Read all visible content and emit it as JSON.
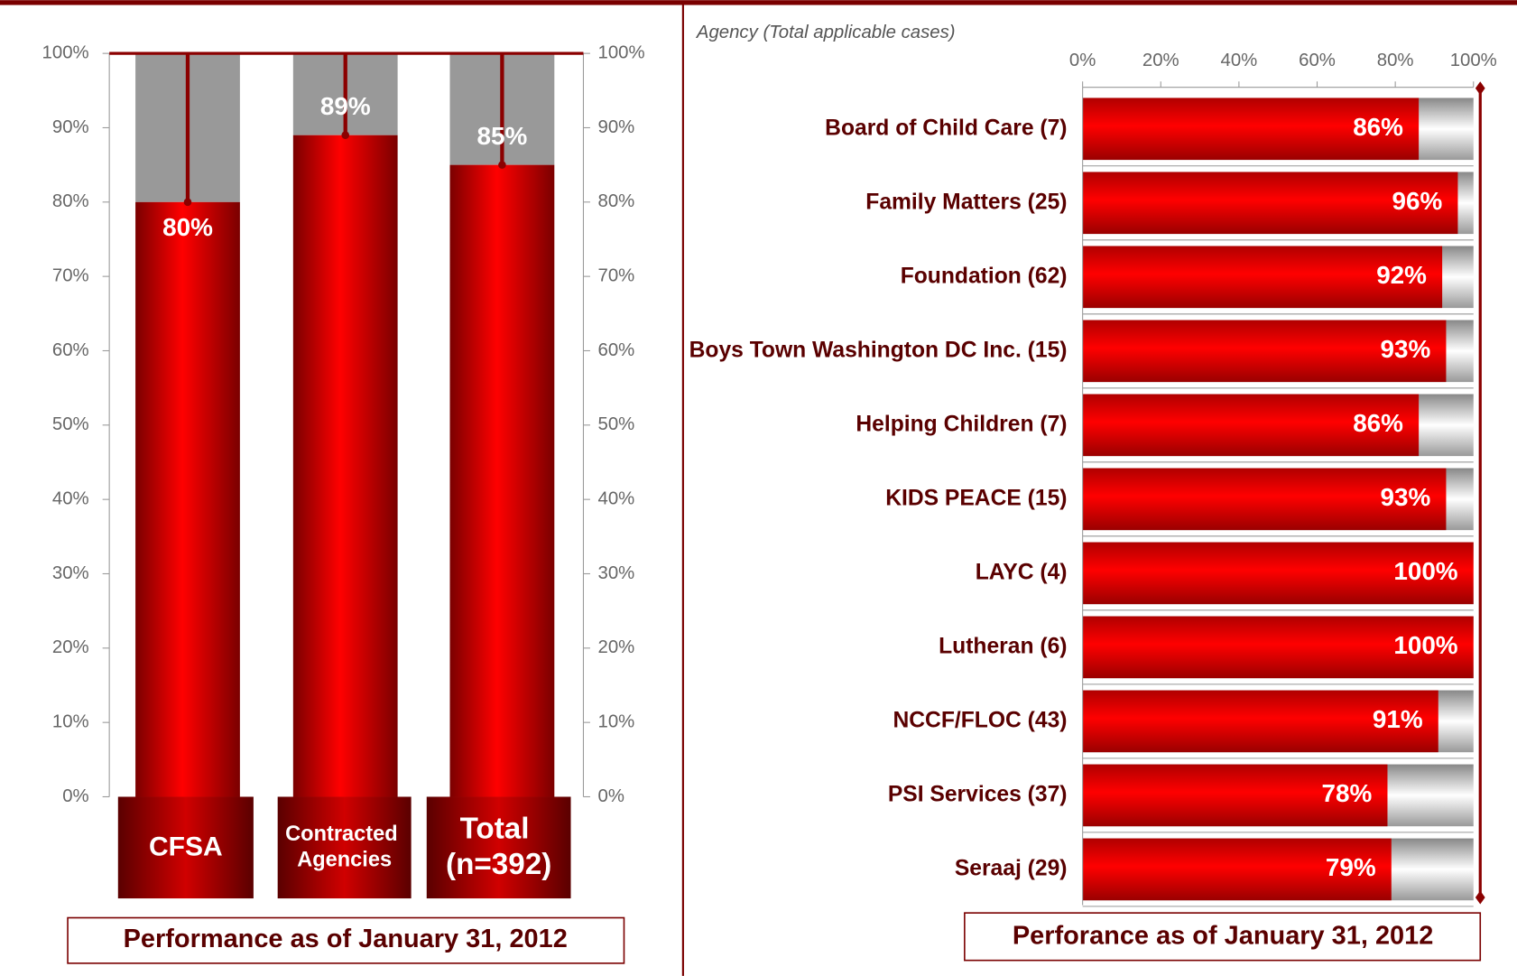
{
  "chart_data": [
    {
      "type": "bar",
      "categories": [
        "CFSA",
        "Contracted Agencies",
        "Total (n=392)"
      ],
      "values": [
        80,
        89,
        85
      ],
      "value_labels": [
        "80%",
        "89%",
        "85%"
      ],
      "color": "#e00000",
      "ylim": [
        0,
        100
      ],
      "yticks": [
        {
          "value": 0,
          "label": "0%"
        },
        {
          "value": 10,
          "label": "10%"
        },
        {
          "value": 20,
          "label": "20%"
        },
        {
          "value": 30,
          "label": "30%"
        },
        {
          "value": 40,
          "label": "40%"
        },
        {
          "value": 50,
          "label": "50%"
        },
        {
          "value": 60,
          "label": "60%"
        },
        {
          "value": 70,
          "label": "70%"
        },
        {
          "value": 80,
          "label": "80%"
        },
        {
          "value": 90,
          "label": "90%"
        },
        {
          "value": 100,
          "label": "100%"
        }
      ],
      "y2lim": [
        0,
        100
      ],
      "y2ticks": [
        {
          "value": 0,
          "label": "0%"
        },
        {
          "value": 10,
          "label": "10%"
        },
        {
          "value": 20,
          "label": "20%"
        },
        {
          "value": 30,
          "label": "30%"
        },
        {
          "value": 40,
          "label": "40%"
        },
        {
          "value": 50,
          "label": "50%"
        },
        {
          "value": 60,
          "label": "60%"
        },
        {
          "value": 70,
          "label": "70%"
        },
        {
          "value": 80,
          "label": "80%"
        },
        {
          "value": 90,
          "label": "90%"
        },
        {
          "value": 100,
          "label": "100%"
        }
      ],
      "caption": "Performance as of January 31, 2012"
    },
    {
      "type": "barh",
      "axis_label": "Agency (Total applicable cases)",
      "categories": [
        "Board of Child Care (7)",
        "Family Matters (25)",
        "Foundation (62)",
        "Boys Town Washington DC Inc. (15)",
        "Helping Children (7)",
        "KIDS PEACE (15)",
        "LAYC (4)",
        "Lutheran (6)",
        "NCCF/FLOC (43)",
        "PSI Services (37)",
        "Seraaj (29)"
      ],
      "values": [
        86,
        96,
        92,
        93,
        86,
        93,
        100,
        100,
        91,
        78,
        79
      ],
      "value_labels": [
        "86%",
        "96%",
        "92%",
        "93%",
        "86%",
        "93%",
        "100%",
        "100%",
        "91%",
        "78%",
        "79%"
      ],
      "color": "#e00000",
      "xlim": [
        0,
        100
      ],
      "xticks": [
        {
          "value": 0,
          "label": "0%"
        },
        {
          "value": 20,
          "label": "20%"
        },
        {
          "value": 40,
          "label": "40%"
        },
        {
          "value": 60,
          "label": "60%"
        },
        {
          "value": 80,
          "label": "80%"
        },
        {
          "value": 100,
          "label": "100%"
        }
      ],
      "caption": "Perforance as of January 31, 2012"
    }
  ]
}
